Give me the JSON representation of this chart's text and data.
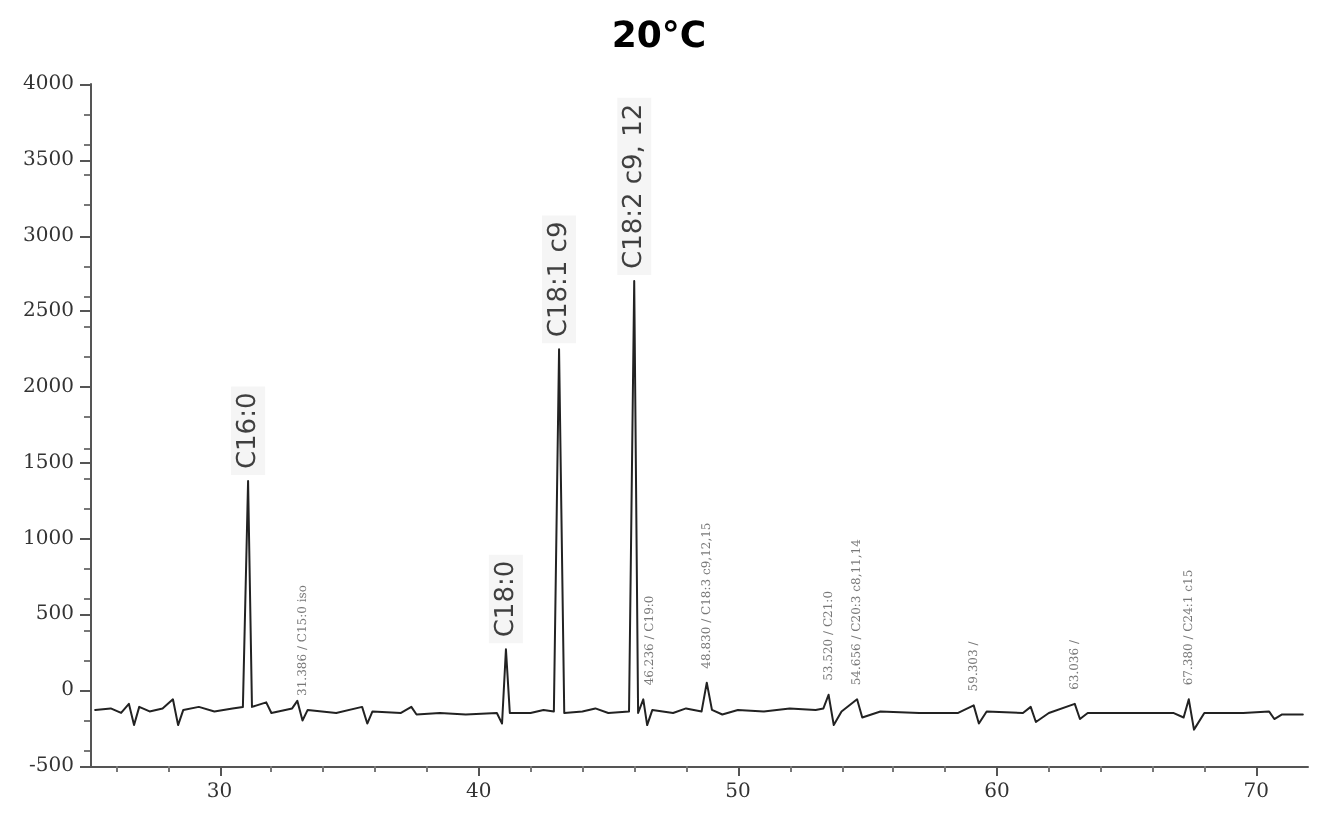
{
  "chart_data": {
    "type": "line",
    "title": "20°C",
    "x": [
      25.2,
      25.8,
      26.2,
      26.5,
      26.7,
      26.9,
      27.3,
      27.8,
      28.2,
      28.4,
      28.6,
      29.2,
      29.8,
      30.5,
      30.9,
      31.1,
      31.25,
      31.8,
      32.0,
      32.8,
      33.0,
      33.2,
      33.4,
      34.5,
      35.5,
      35.7,
      35.9,
      37.0,
      37.4,
      37.6,
      38.5,
      39.5,
      40.7,
      40.9,
      41.05,
      41.2,
      42.0,
      42.5,
      42.9,
      43.1,
      43.3,
      44.0,
      44.5,
      45.0,
      45.8,
      46.0,
      46.15,
      46.35,
      46.5,
      46.7,
      47.5,
      48.0,
      48.6,
      48.8,
      49.0,
      49.4,
      50.0,
      51.0,
      52.0,
      53.0,
      53.3,
      53.5,
      53.7,
      54.0,
      54.6,
      54.8,
      55.5,
      57.0,
      58.5,
      59.1,
      59.3,
      59.6,
      61.0,
      61.3,
      61.5,
      62.0,
      63.0,
      63.2,
      63.5,
      65.0,
      66.8,
      67.2,
      67.4,
      67.6,
      68.0,
      69.5,
      70.5,
      70.7,
      71.0,
      71.8
    ],
    "series": [
      {
        "color": "#222222",
        "values": [
          -130,
          -120,
          -150,
          -90,
          -230,
          -110,
          -140,
          -120,
          -60,
          -230,
          -130,
          -110,
          -140,
          -120,
          -110,
          1380,
          -110,
          -80,
          -150,
          -120,
          -70,
          -200,
          -130,
          -150,
          -110,
          -220,
          -140,
          -150,
          -110,
          -160,
          -150,
          -160,
          -150,
          -220,
          270,
          -150,
          -150,
          -130,
          -140,
          2250,
          -150,
          -140,
          -120,
          -150,
          -140,
          2700,
          -150,
          -60,
          -230,
          -130,
          -150,
          -120,
          -140,
          50,
          -130,
          -160,
          -130,
          -140,
          -120,
          -130,
          -120,
          -30,
          -230,
          -140,
          -60,
          -180,
          -140,
          -150,
          -150,
          -100,
          -220,
          -140,
          -150,
          -110,
          -210,
          -150,
          -90,
          -190,
          -150,
          -150,
          -150,
          -180,
          -60,
          -260,
          -150,
          -150,
          -140,
          -190,
          -160,
          -160
        ]
      }
    ],
    "xlim": [
      25,
      72
    ],
    "xticks": [
      30,
      40,
      50,
      60,
      70
    ],
    "ylim": [
      -500,
      4000
    ],
    "yticks": [
      -500,
      0,
      500,
      1000,
      1500,
      2000,
      2500,
      3000,
      3500,
      4000
    ],
    "grid": false,
    "marker": "none",
    "line_style": "solid",
    "annotations": [
      {
        "text": "C16:0",
        "x": 31.1,
        "y": 1380
      },
      {
        "text": "31.386 / C15:0 iso",
        "x": 33.2,
        "y": -130
      },
      {
        "text": "C18:0",
        "x": 41.05,
        "y": 270
      },
      {
        "text": "C18:1 c9",
        "x": 43.1,
        "y": 2250
      },
      {
        "text": "C18:2 c9, 12",
        "x": 46.0,
        "y": 2700
      },
      {
        "text": "46.236 / C19:0",
        "x": 46.6,
        "y": -60
      },
      {
        "text": "48.830 / C18:3 c9,12,15",
        "x": 48.8,
        "y": 50
      },
      {
        "text": "53.520 / C21:0",
        "x": 53.5,
        "y": -30
      },
      {
        "text": "54.656 / C20:3 c8,11,14",
        "x": 54.6,
        "y": -60
      },
      {
        "text": "59.303 /",
        "x": 59.1,
        "y": -100
      },
      {
        "text": "63.036 /",
        "x": 63.0,
        "y": -90
      },
      {
        "text": "67.380 / C24:1 c15",
        "x": 67.4,
        "y": -60
      }
    ]
  }
}
